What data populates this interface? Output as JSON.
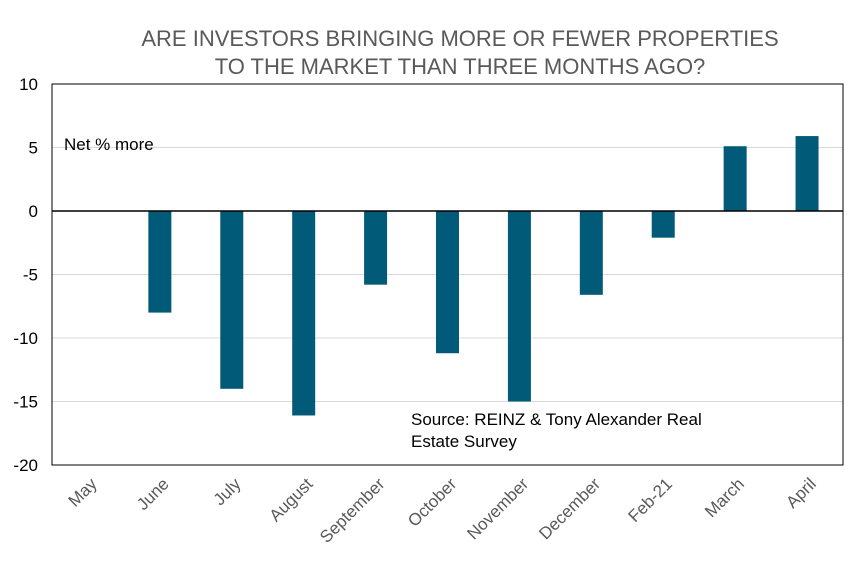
{
  "chart_data": {
    "type": "bar",
    "title_lines": [
      "ARE INVESTORS BRINGING MORE OR FEWER PROPERTIES",
      "TO THE MARKET THAN THREE MONTHS AGO?"
    ],
    "categories": [
      "May",
      "June",
      "July",
      "August",
      "September",
      "October",
      "November",
      "December",
      "Feb-21",
      "March",
      "April"
    ],
    "series": [
      {
        "values": [
          0,
          -8,
          -14,
          -16.1,
          -5.8,
          -11.2,
          -15,
          -6.6,
          -2.1,
          5.1,
          5.9
        ]
      }
    ],
    "ylim": [
      -20,
      10
    ],
    "yticks": [
      10,
      5,
      0,
      -5,
      -10,
      -15,
      -20
    ],
    "grid": true,
    "annotations": {
      "series_label": "Net % more",
      "source_line1": "Source: REINZ & Tony Alexander Real",
      "source_line2": "Estate Survey"
    },
    "colors": {
      "bar": "#005a78",
      "grid": "#d9d9d9",
      "axis": "#000000",
      "frame": "#000000"
    }
  }
}
